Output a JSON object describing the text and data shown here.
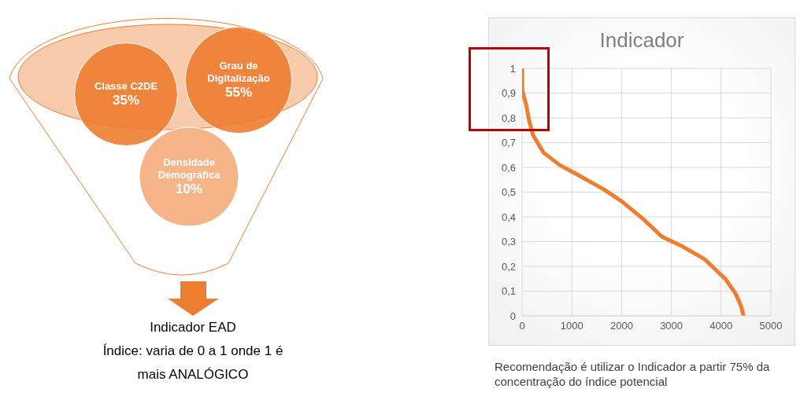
{
  "chart_data": [
    {
      "type": "other",
      "categories": [
        "Classe C2DE",
        "Grau de Digitalização",
        "Densidade Demográfica"
      ],
      "values": [
        35,
        55,
        10
      ],
      "value_labels": [
        "35%",
        "55%",
        "10%"
      ],
      "colors": [
        "#ed7d31",
        "#ed7d31",
        "#f4b183"
      ],
      "annotations": [
        "Indicador EAD",
        "Índice: varia de 0 a 1 onde 1 é mais ANALÓGICO"
      ]
    },
    {
      "type": "line",
      "title": "Indicador",
      "x": [
        0,
        5,
        85,
        140,
        220,
        430,
        750,
        1120,
        1650,
        2020,
        2440,
        2810,
        3230,
        3660,
        4080,
        4290,
        4400,
        4450
      ],
      "values": [
        1,
        0.91,
        0.85,
        0.79,
        0.73,
        0.66,
        0.61,
        0.57,
        0.51,
        0.46,
        0.39,
        0.32,
        0.28,
        0.23,
        0.15,
        0.09,
        0.04,
        0
      ],
      "color": "#ed7d31",
      "xlim": [
        0,
        5000
      ],
      "xticks": [
        0,
        1000,
        2000,
        3000,
        4000,
        5000
      ],
      "ylim": [
        0,
        1
      ],
      "yticks": [
        0,
        {
          "value": 0.1,
          "label": "0,1"
        },
        {
          "value": 0.2,
          "label": "0,2"
        },
        {
          "value": 0.3,
          "label": "0,3"
        },
        {
          "value": 0.4,
          "label": "0,4"
        },
        {
          "value": 0.5,
          "label": "0,5"
        },
        {
          "value": 0.6,
          "label": "0,6"
        },
        {
          "value": 0.7,
          "label": "0,7"
        },
        {
          "value": 0.8,
          "label": "0,8"
        },
        {
          "value": 0.9,
          "label": "0,9"
        },
        1
      ],
      "grid": true,
      "marker": "none",
      "line_style": "solid",
      "annotations": [
        "Recomendação é utilizar o Indicador a partir 75% da concentração do índice potencial"
      ]
    }
  ]
}
